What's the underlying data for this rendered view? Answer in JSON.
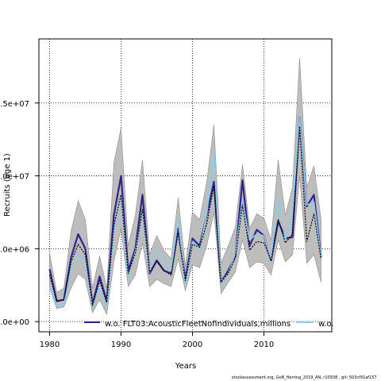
{
  "chart_data": {
    "type": "line",
    "xlabel": "Years",
    "ylabel": "Recruits (age 1)",
    "xlim": [
      1978.5,
      2019.5
    ],
    "ylim": [
      -700000,
      19400000
    ],
    "x_ticks": [
      1980,
      1990,
      2000,
      2010
    ],
    "y_ticks": [
      {
        "value": 0,
        "label": "0.0e+00"
      },
      {
        "value": 5000000,
        "label": "5.0e+06"
      },
      {
        "value": 10000000,
        "label": "1.0e+07"
      },
      {
        "value": 15000000,
        "label": "1.5e+07"
      }
    ],
    "grid": true,
    "grid_style": "dotted",
    "years": [
      1980,
      1981,
      1982,
      1983,
      1984,
      1985,
      1986,
      1987,
      1988,
      1989,
      1990,
      1991,
      1992,
      1993,
      1994,
      1995,
      1996,
      1997,
      1998,
      1999,
      2000,
      2001,
      2002,
      2003,
      2004,
      2005,
      2006,
      2007,
      2008,
      2009,
      2010,
      2011,
      2012,
      2013,
      2014,
      2015,
      2016,
      2017,
      2018
    ],
    "band_lower": [
      2300000,
      900000,
      1000000,
      2300000,
      3300000,
      2900000,
      600000,
      1500000,
      500000,
      4100000,
      6400000,
      2400000,
      3200000,
      5400000,
      2400000,
      2900000,
      2600000,
      2400000,
      4300000,
      2100000,
      3900000,
      3700000,
      5200000,
      7500000,
      1900000,
      2700000,
      3400000,
      5600000,
      3700000,
      4100000,
      4000000,
      3200000,
      5600000,
      4100000,
      4600000,
      10000000,
      4000000,
      4600000,
      2700000
    ],
    "band_upper": [
      4700000,
      2000000,
      2300000,
      6200000,
      8300000,
      7000000,
      2300000,
      4500000,
      2300000,
      10900000,
      13300000,
      5200000,
      7300000,
      11100000,
      4600000,
      5900000,
      4900000,
      4300000,
      8500000,
      3800000,
      7500000,
      7000000,
      9600000,
      13500000,
      4000000,
      5200000,
      6500000,
      10800000,
      6400000,
      7400000,
      7100000,
      5600000,
      11100000,
      7300000,
      9200000,
      18100000,
      9200000,
      10700000,
      7000000
    ],
    "series": [
      {
        "name": "w.o. FLT03:AcousticFleetNofindividuals,millions",
        "color": "#332288",
        "values": [
          3600000,
          1400000,
          1500000,
          4400000,
          6000000,
          5000000,
          1200000,
          3100000,
          1400000,
          7300000,
          10000000,
          3500000,
          5000000,
          8700000,
          3300000,
          4200000,
          3500000,
          3300000,
          6400000,
          2900000,
          5700000,
          5200000,
          7300000,
          9600000,
          2700000,
          3500000,
          4500000,
          9700000,
          5200000,
          6300000,
          5900000,
          4200000,
          6900000,
          5700000,
          5800000,
          14000000,
          7900000,
          8700000,
          4400000
        ]
      },
      {
        "name": "",
        "color": "#87ceeb",
        "values": [
          2400000,
          1100000,
          1200000,
          3400000,
          4700000,
          4200000,
          1000000,
          2400000,
          1000000,
          6200000,
          8700000,
          3000000,
          4800000,
          7500000,
          3400000,
          4900000,
          4200000,
          3500000,
          7000000,
          2500000,
          5500000,
          4900000,
          7400000,
          11600000,
          2700000,
          3300000,
          4700000,
          8300000,
          5600000,
          6000000,
          5900000,
          4300000,
          8500000,
          5600000,
          7500000,
          14000000,
          8000000,
          8200000,
          4400000
        ]
      },
      {
        "name": "",
        "color": "#000000",
        "dash": true,
        "values": [
          3200000,
          1400000,
          1500000,
          4100000,
          5300000,
          4600000,
          1100000,
          2800000,
          1300000,
          6600000,
          8700000,
          3300000,
          4700000,
          7700000,
          3400000,
          4100000,
          3500000,
          3200000,
          6100000,
          2800000,
          5300000,
          5100000,
          6700000,
          9300000,
          2700000,
          3300000,
          4400000,
          8000000,
          4900000,
          5500000,
          5400000,
          4200000,
          7000000,
          5400000,
          6000000,
          13400000,
          5500000,
          7400000,
          4300000
        ]
      }
    ]
  },
  "legend": {
    "item1_label": "w.o. FLT03:AcousticFleetNofindividuals,millions",
    "item2_label": "w.o."
  },
  "footer": "stockassessment.org, GoB_Herring_2019_AN, r10938 , git: 503cf91af157",
  "colors": {
    "band": "#bdbdbd",
    "band_edge": "#8c8c8c",
    "series1": "#332288",
    "series2": "#87ceeb",
    "series3": "#000000"
  }
}
